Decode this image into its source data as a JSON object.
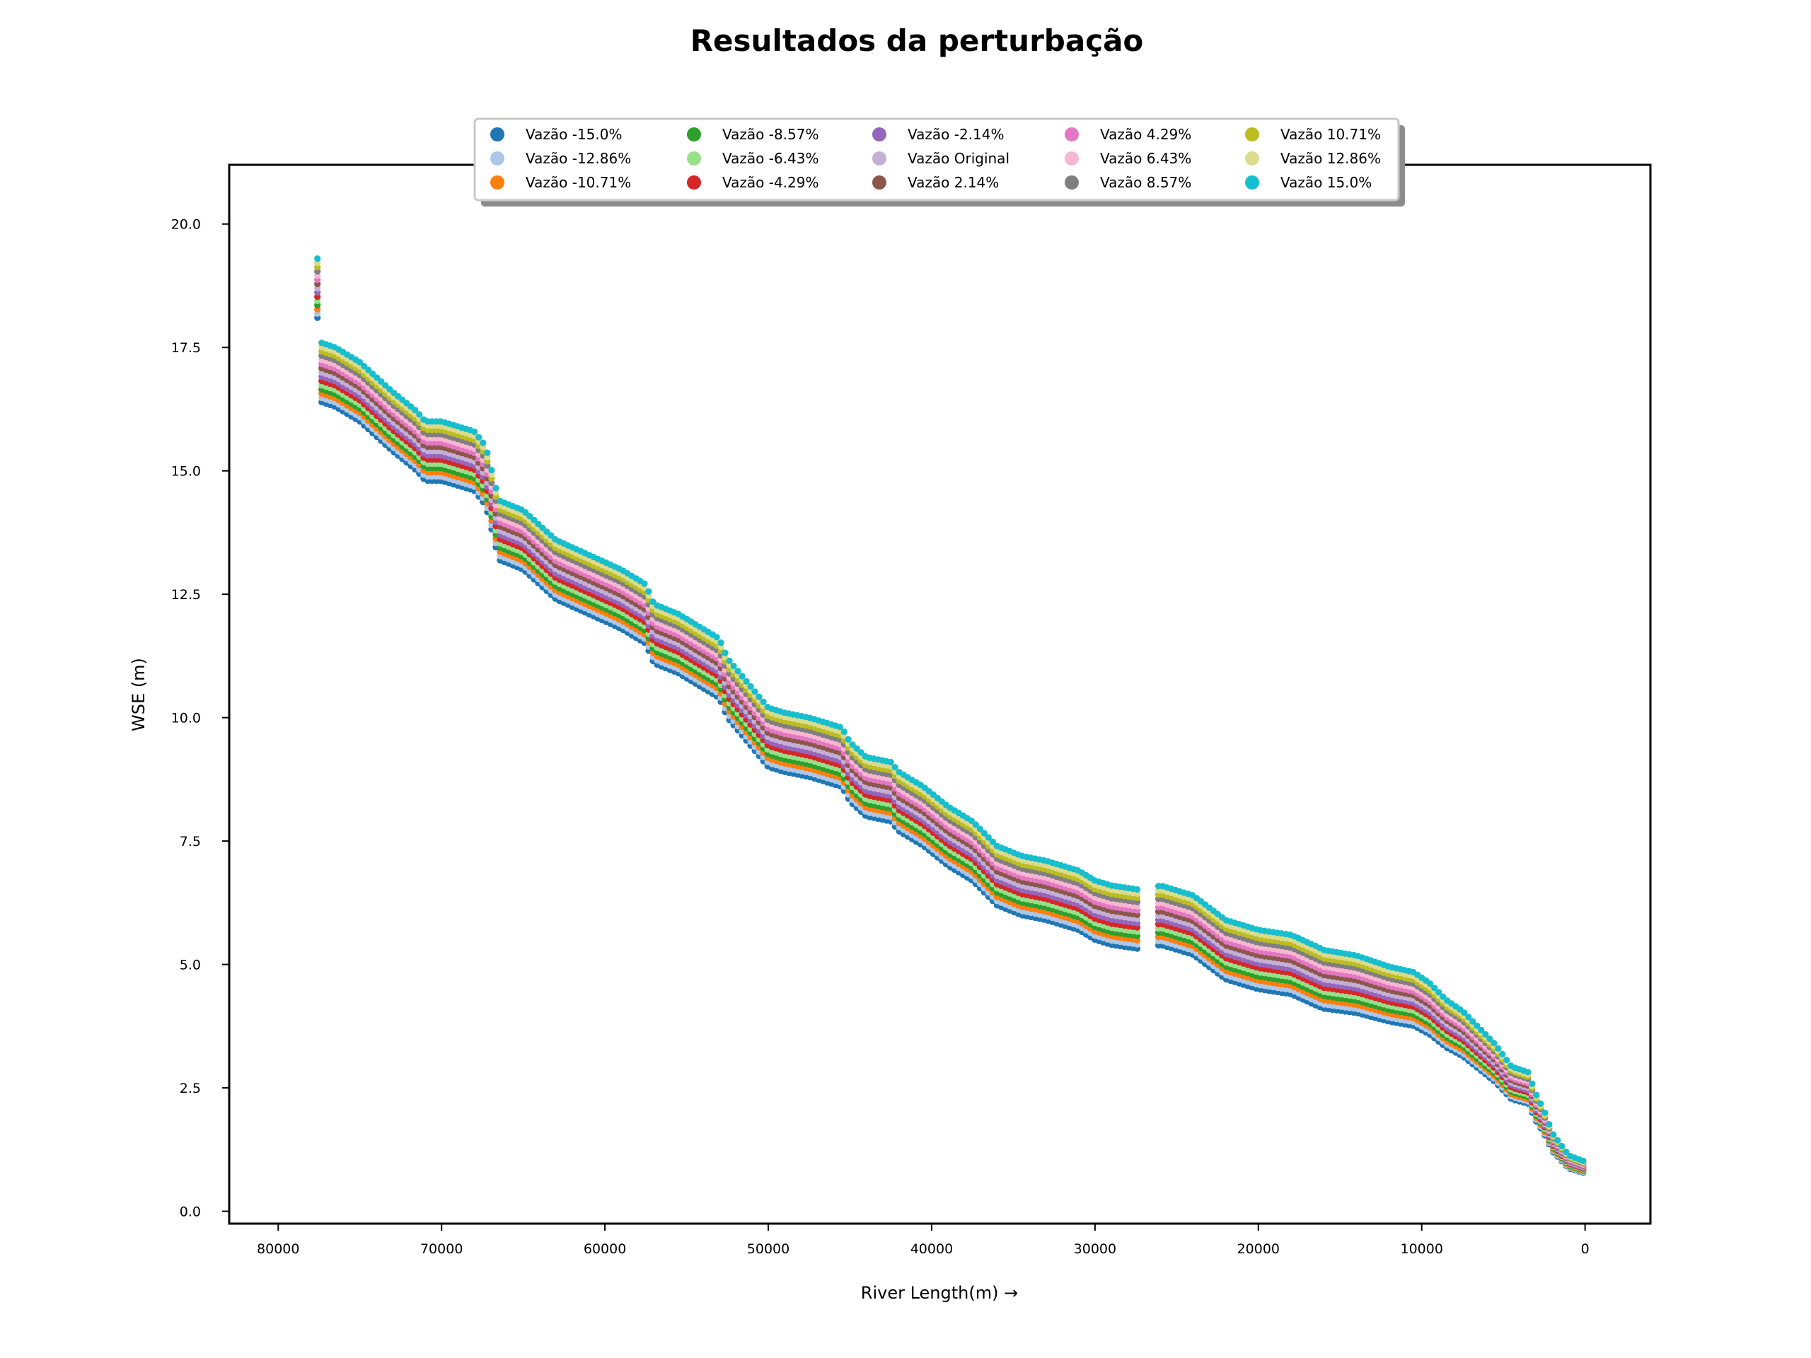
{
  "chart_data": {
    "type": "scatter",
    "title": "Resultados da perturbação",
    "xlabel": "River Length(m) →",
    "ylabel": "WSE (m)",
    "x_reversed": true,
    "xlim": [
      83000,
      -4000
    ],
    "ylim": [
      -0.25,
      21.2
    ],
    "x_ticks": [
      80000,
      70000,
      60000,
      50000,
      40000,
      30000,
      20000,
      10000,
      0
    ],
    "x_tick_labels": [
      "80000",
      "70000",
      "60000",
      "50000",
      "40000",
      "30000",
      "20000",
      "10000",
      "0"
    ],
    "y_ticks": [
      0,
      2.5,
      5,
      7.5,
      10,
      12.5,
      15,
      17.5,
      20
    ],
    "y_tick_labels": [
      "0.0",
      "2.5",
      "5.0",
      "7.5",
      "10.0",
      "12.5",
      "15.0",
      "17.5",
      "20.0"
    ],
    "grid": false,
    "legend_position": "top-center",
    "legend_columns": 5,
    "profile_x": [
      77600,
      77400,
      76500,
      75000,
      73000,
      71500,
      71000,
      70000,
      69000,
      68000,
      67300,
      67000,
      66500,
      65000,
      63000,
      61000,
      59000,
      57500,
      57000,
      55500,
      54500,
      53000,
      52500,
      51500,
      50500,
      50000,
      49000,
      47500,
      45500,
      45000,
      44000,
      42500,
      42000,
      40500,
      39000,
      37500,
      36000,
      34500,
      33000,
      31000,
      30000,
      29000,
      27000,
      26000,
      24000,
      22000,
      20000,
      18000,
      16000,
      14000,
      12000,
      10500,
      9500,
      8500,
      7500,
      6500,
      5500,
      5000,
      4500,
      3500,
      3000,
      2500,
      2000,
      1500,
      1000,
      100
    ],
    "profile_y": [
      18.7,
      17.0,
      16.9,
      16.6,
      16.0,
      15.6,
      15.4,
      15.4,
      15.3,
      15.2,
      14.9,
      14.5,
      13.8,
      13.6,
      13.0,
      12.7,
      12.4,
      12.1,
      11.7,
      11.5,
      11.3,
      11.0,
      10.6,
      10.2,
      9.8,
      9.6,
      9.5,
      9.4,
      9.2,
      8.9,
      8.6,
      8.5,
      8.3,
      8.0,
      7.6,
      7.3,
      6.8,
      6.6,
      6.5,
      6.3,
      6.1,
      6.0,
      5.9,
      6.0,
      5.8,
      5.3,
      5.1,
      5.0,
      4.7,
      4.6,
      4.4,
      4.3,
      4.1,
      3.8,
      3.6,
      3.3,
      3.0,
      2.8,
      2.6,
      2.5,
      2.1,
      1.8,
      1.4,
      1.2,
      1.0,
      0.9
    ],
    "profile_gaps": [
      [
        27300,
        26200
      ]
    ],
    "spread_per_percent": 0.025,
    "series": [
      {
        "name": "Vazão -15.0%",
        "perturbation": -15.0,
        "color": "#1f77b4"
      },
      {
        "name": "Vazão -12.86%",
        "perturbation": -12.86,
        "color": "#aec7e8"
      },
      {
        "name": "Vazão -10.71%",
        "perturbation": -10.71,
        "color": "#ff7f0e"
      },
      {
        "name": "Vazão -8.57%",
        "perturbation": -8.57,
        "color": "#2ca02c"
      },
      {
        "name": "Vazão -6.43%",
        "perturbation": -6.43,
        "color": "#98df8a"
      },
      {
        "name": "Vazão -4.29%",
        "perturbation": -4.29,
        "color": "#d62728"
      },
      {
        "name": "Vazão -2.14%",
        "perturbation": -2.14,
        "color": "#9467bd"
      },
      {
        "name": "Vazão Original",
        "perturbation": 0.0,
        "color": "#c5b0d5"
      },
      {
        "name": "Vazão 2.14%",
        "perturbation": 2.14,
        "color": "#8c564b"
      },
      {
        "name": "Vazão 4.29%",
        "perturbation": 4.29,
        "color": "#e377c2"
      },
      {
        "name": "Vazão 6.43%",
        "perturbation": 6.43,
        "color": "#f7b6d2"
      },
      {
        "name": "Vazão 8.57%",
        "perturbation": 8.57,
        "color": "#7f7f7f"
      },
      {
        "name": "Vazão 10.71%",
        "perturbation": 10.71,
        "color": "#bcbd22"
      },
      {
        "name": "Vazão 12.86%",
        "perturbation": 12.86,
        "color": "#dbdb8d"
      },
      {
        "name": "Vazão 15.0%",
        "perturbation": 15.0,
        "color": "#17becf"
      }
    ]
  }
}
